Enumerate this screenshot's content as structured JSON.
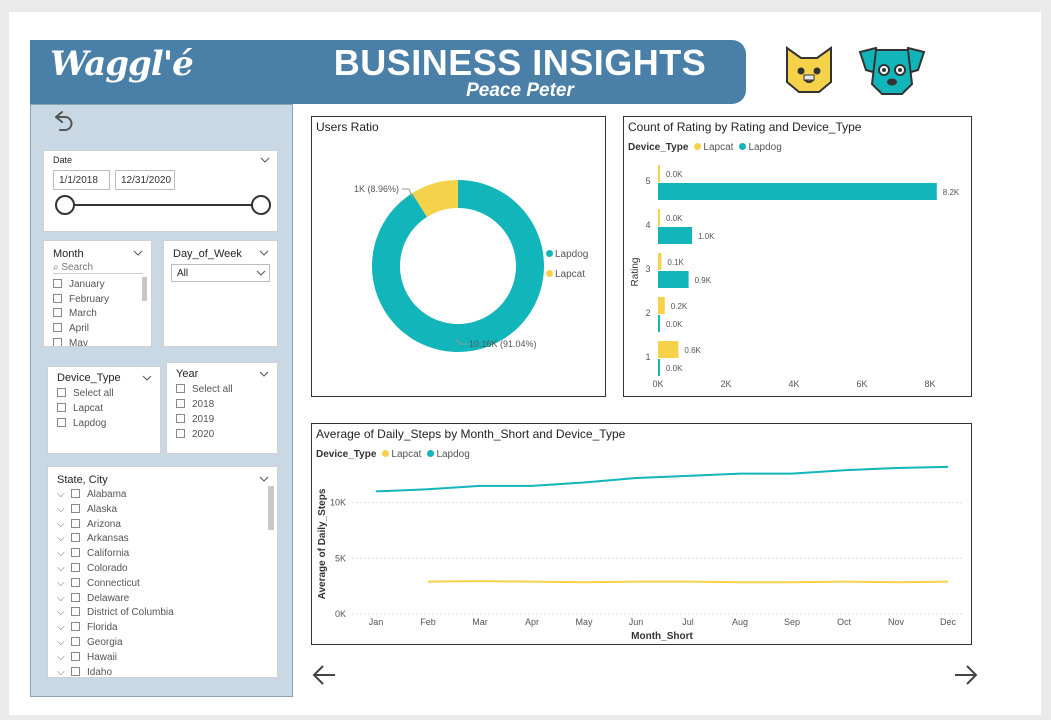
{
  "header": {
    "logo": "Waggl'é",
    "title": "BUSINESS INSIGHTS",
    "subtitle": "Peace Peter"
  },
  "icons": {
    "cat": "cat-face-icon",
    "dog": "dog-face-icon",
    "back": "back-arrow-icon",
    "prev": "left-arrow-icon",
    "next": "right-arrow-icon"
  },
  "colors": {
    "lapdog": "#12b5b9",
    "lapcat": "#f6d24a",
    "header": "#4a7fa7",
    "sidebar": "#c8d8e4"
  },
  "filters": {
    "date": {
      "title": "Date",
      "start": "1/1/2018",
      "end": "12/31/2020"
    },
    "month": {
      "title": "Month",
      "search": "Search",
      "items": [
        "January",
        "February",
        "March",
        "April",
        "May"
      ]
    },
    "day_of_week": {
      "title": "Day_of_Week",
      "value": "All"
    },
    "device_type": {
      "title": "Device_Type",
      "items": [
        "Select all",
        "Lapcat",
        "Lapdog"
      ]
    },
    "year": {
      "title": "Year",
      "items": [
        "Select all",
        "2018",
        "2019",
        "2020"
      ]
    },
    "state_city": {
      "title": "State, City",
      "items": [
        "Alabama",
        "Alaska",
        "Arizona",
        "Arkansas",
        "California",
        "Colorado",
        "Connecticut",
        "Delaware",
        "District of Columbia",
        "Florida",
        "Georgia",
        "Hawaii",
        "Idaho"
      ]
    }
  },
  "chart_data": [
    {
      "type": "pie",
      "title": "Users Ratio",
      "categories": [
        "Lapdog",
        "Lapcat"
      ],
      "values": [
        10160,
        1000
      ],
      "data_labels": [
        "10.16K (91.04%)",
        "1K (8.96%)"
      ],
      "legend": [
        "Lapdog",
        "Lapcat"
      ],
      "legend_position": "right",
      "donut": true
    },
    {
      "type": "bar",
      "orientation": "horizontal",
      "title": "Count of Rating by Rating and Device_Type",
      "legend_title": "Device_Type",
      "categories": [
        "5",
        "4",
        "3",
        "2",
        "1"
      ],
      "series": [
        {
          "name": "Lapcat",
          "values": [
            0,
            0,
            100,
            200,
            600
          ],
          "labels": [
            "0.0K",
            "0.0K",
            "0.1K",
            "0.2K",
            "0.6K"
          ]
        },
        {
          "name": "Lapdog",
          "values": [
            8200,
            1000,
            900,
            0,
            0
          ],
          "labels": [
            "8.2K",
            "1.0K",
            "0.9K",
            "0.0K",
            "0.0K"
          ]
        }
      ],
      "xlim": [
        0,
        8500
      ],
      "xticks": [
        "0K",
        "2K",
        "4K",
        "6K",
        "8K"
      ],
      "ylabel": "Rating"
    },
    {
      "type": "line",
      "title": "Average of Daily_Steps by Month_Short and Device_Type",
      "legend_title": "Device_Type",
      "x": [
        "Jan",
        "Feb",
        "Mar",
        "Apr",
        "May",
        "Jun",
        "Jul",
        "Aug",
        "Sep",
        "Oct",
        "Nov",
        "Dec"
      ],
      "series": [
        {
          "name": "Lapcat",
          "values": [
            null,
            2900,
            2950,
            2900,
            2850,
            2900,
            2900,
            2850,
            2850,
            2900,
            2850,
            2900
          ]
        },
        {
          "name": "Lapdog",
          "values": [
            11000,
            11200,
            11500,
            11500,
            11800,
            12200,
            12400,
            12600,
            12600,
            12900,
            13100,
            13200
          ]
        }
      ],
      "ylim": [
        0,
        14000
      ],
      "yticks": [
        "0K",
        "5K",
        "10K"
      ],
      "xlabel": "Month_Short",
      "ylabel": "Average of Daily_Steps"
    }
  ]
}
